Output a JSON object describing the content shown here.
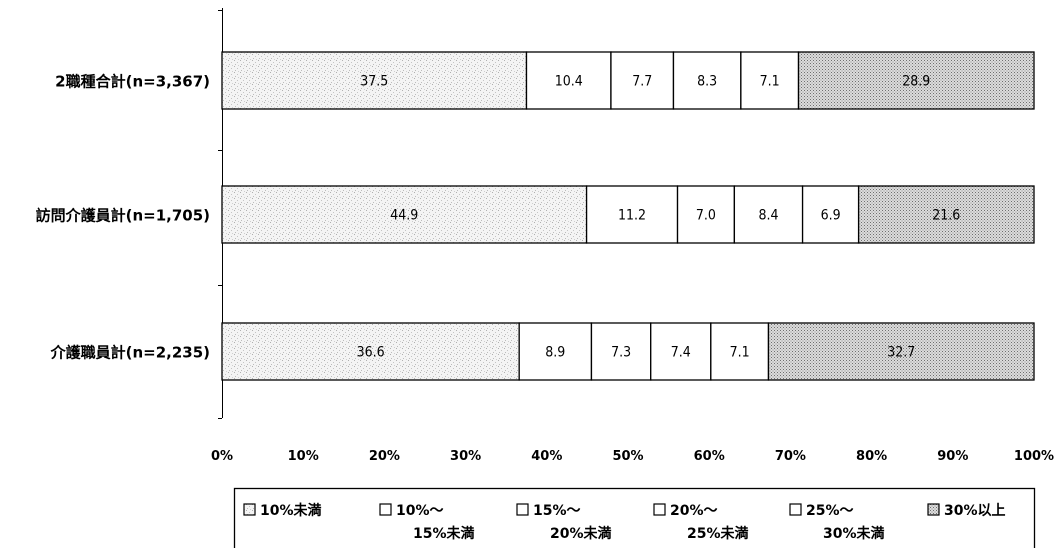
{
  "chart_data": {
    "type": "bar",
    "orientation": "horizontal",
    "stacked": true,
    "percent": true,
    "categories": [
      "2職種合計(n=3,367)",
      "訪問介護員計(n=1,705)",
      "介護職員計(n=2,235)"
    ],
    "series": [
      {
        "name": "10%未満",
        "values": [
          "37.5",
          "44.9",
          "36.6"
        ],
        "pattern": "light-speckle"
      },
      {
        "name": "10%～15%未満",
        "values": [
          "10.4",
          "11.2",
          "8.9"
        ],
        "pattern": "white"
      },
      {
        "name": "15%～20%未満",
        "values": [
          "7.7",
          "7.0",
          "7.3"
        ],
        "pattern": "white"
      },
      {
        "name": "20%～25%未満",
        "values": [
          "8.3",
          "8.4",
          "7.4"
        ],
        "pattern": "white"
      },
      {
        "name": "25%～30%未満",
        "values": [
          "7.1",
          "6.9",
          "7.1"
        ],
        "pattern": "white"
      },
      {
        "name": "30%以上",
        "values": [
          "28.9",
          "21.6",
          "32.7"
        ],
        "pattern": "dense-dots"
      }
    ],
    "xlim": [
      0,
      100
    ],
    "xticks": [
      "0%",
      "10%",
      "20%",
      "30%",
      "40%",
      "50%",
      "60%",
      "70%",
      "80%",
      "90%",
      "100%"
    ],
    "legend_position": "bottom",
    "legend": [
      {
        "line1": "10%未満",
        "line2": ""
      },
      {
        "line1": "10%～",
        "line2": "15%未満"
      },
      {
        "line1": "15%～",
        "line2": "20%未満"
      },
      {
        "line1": "20%～",
        "line2": "25%未満"
      },
      {
        "line1": "25%～",
        "line2": "30%未満"
      },
      {
        "line1": "30%以上",
        "line2": ""
      }
    ],
    "colors": {
      "stroke": "#000000",
      "light_fill": "#f2f2f2",
      "speckle": "#b8b8b8",
      "dense_fill": "#d6d6d6",
      "dense_dot": "#7a7a7a",
      "white": "#ffffff"
    }
  }
}
